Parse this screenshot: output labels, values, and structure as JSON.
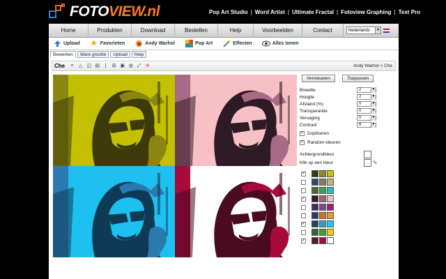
{
  "brand": {
    "name": "FOTO",
    "name_accent": "VIEW.nl"
  },
  "top_links": [
    "Pop Art Studio",
    "Word Artist",
    "Ultimate Fractal",
    "Fotoview Graphing",
    "Text Pro"
  ],
  "nav": {
    "items": [
      "Home",
      "Produkten",
      "Download",
      "Bestellen",
      "Help",
      "Voorbeelden",
      "Contact"
    ],
    "language": "Nederlands"
  },
  "tools": [
    {
      "label": "Upload",
      "icon": "upload-arrow-icon"
    },
    {
      "label": "Favorieten",
      "icon": "star-icon"
    },
    {
      "label": "Andy Warhol",
      "icon": "warhol-face-icon"
    },
    {
      "label": "Pop Art",
      "icon": "pop-art-icon"
    },
    {
      "label": "Effecten",
      "icon": "magic-wand-icon"
    },
    {
      "label": "Alles tonen",
      "icon": "eye-icon"
    }
  ],
  "tabs": [
    "Bewerken",
    "Ware grootte",
    "Upload",
    "Help"
  ],
  "editor": {
    "name": "Che",
    "breadcrumb": "Andy Warhol > Che"
  },
  "buttons": {
    "refresh": "Vernieuwen",
    "apply": "Toepassen"
  },
  "settings": [
    {
      "label": "Breedte",
      "value": "2"
    },
    {
      "label": "Hoogte",
      "value": "2"
    },
    {
      "label": "Afstand (%)",
      "value": "0"
    },
    {
      "label": "Transparantie",
      "value": "0"
    },
    {
      "label": "Vervaging",
      "value": "0"
    },
    {
      "label": "Contrast",
      "value": "8"
    }
  ],
  "options": {
    "duplicate": {
      "label": "Dupliceren",
      "checked": true
    },
    "random": {
      "label": "Random kleuren",
      "checked": true
    },
    "background": "Achtergrondkleur",
    "click_color": "Klik op een kleur"
  },
  "palettes": [
    {
      "checked": true,
      "colors": [
        "#3a3a10",
        "#8a8a20",
        "#c9c20a"
      ]
    },
    {
      "checked": false,
      "colors": [
        "#2a4a7a",
        "#8a7a5a",
        "#c9b080"
      ]
    },
    {
      "checked": false,
      "colors": [
        "#4a6a2a",
        "#3aa04a",
        "#20c0c0"
      ]
    },
    {
      "checked": true,
      "colors": [
        "#3a1a3a",
        "#a06080",
        "#f0c0c8"
      ]
    },
    {
      "checked": false,
      "colors": [
        "#4a2a5a",
        "#7a4a8a",
        "#a0206a"
      ]
    },
    {
      "checked": false,
      "colors": [
        "#2a3a6a",
        "#d07020",
        "#e0a020"
      ]
    },
    {
      "checked": true,
      "colors": [
        "#1a4a6a",
        "#3a9ad0",
        "#20c8f0"
      ]
    },
    {
      "checked": false,
      "colors": [
        "#2a6a2a",
        "#40a020",
        "#f0d000"
      ]
    },
    {
      "checked": true,
      "colors": [
        "#5a1a2a",
        "#a0103a",
        "#ffffff"
      ]
    }
  ],
  "quadrants": [
    {
      "bg": "#c2c000",
      "dark": "#3c3a08",
      "mid": "#8a8612"
    },
    {
      "bg": "#f7c0c4",
      "dark": "#2e1a24",
      "mid": "#a86a84"
    },
    {
      "bg": "#1ec0f0",
      "dark": "#0e3a56",
      "mid": "#2a7ab0"
    },
    {
      "bg": "#ffffff",
      "dark": "#4a0a20",
      "mid": "#a80a3c"
    }
  ]
}
